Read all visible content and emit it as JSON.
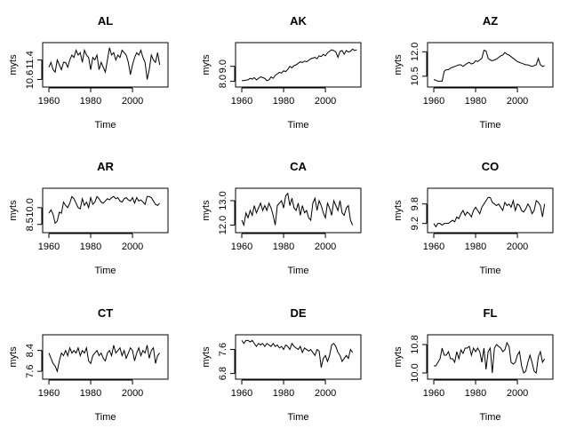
{
  "chart_data": [
    {
      "type": "line",
      "title": "AL",
      "xlabel": "Time",
      "ylabel": "myts",
      "xlim": [
        1960,
        2014
      ],
      "ylim": [
        10.4,
        12.0
      ],
      "xticks": [
        1960,
        1980,
        2000
      ],
      "yticks": [
        10.6,
        11.4
      ],
      "ytick_labels": [
        "10.6",
        "11.4"
      ],
      "x_start": 1960,
      "values": [
        11.1,
        11.3,
        11.0,
        10.9,
        11.4,
        11.2,
        11.0,
        11.3,
        11.3,
        11.1,
        11.4,
        11.6,
        11.5,
        11.8,
        11.6,
        11.7,
        11.3,
        11.8,
        11.6,
        11.5,
        11.0,
        11.5,
        11.4,
        11.6,
        11.0,
        11.3,
        11.1,
        10.9,
        11.4,
        11.9,
        11.6,
        11.7,
        11.4,
        11.6,
        11.5,
        11.8,
        11.7,
        11.6,
        11.3,
        10.8,
        11.2,
        11.5,
        11.7,
        11.6,
        11.8,
        11.5,
        11.3,
        10.6,
        11.0,
        11.6,
        11.4,
        11.3,
        11.7,
        11.2
      ]
    },
    {
      "type": "line",
      "title": "AK",
      "xlabel": "Time",
      "ylabel": "myts",
      "xlim": [
        1960,
        2014
      ],
      "ylim": [
        7.8,
        10.4
      ],
      "xticks": [
        1960,
        1980,
        2000
      ],
      "yticks": [
        8.0,
        9.0
      ],
      "ytick_labels": [
        "8.0",
        "9.0"
      ],
      "x_start": 1960,
      "values": [
        8.05,
        8.05,
        8.08,
        8.1,
        8.2,
        8.15,
        8.25,
        8.1,
        8.2,
        8.3,
        8.25,
        8.2,
        8.05,
        8.1,
        8.3,
        8.2,
        8.4,
        8.5,
        8.6,
        8.55,
        8.7,
        8.65,
        8.8,
        9.0,
        8.9,
        9.05,
        9.1,
        9.2,
        9.3,
        9.25,
        9.35,
        9.3,
        9.4,
        9.5,
        9.55,
        9.6,
        9.5,
        9.7,
        9.65,
        9.8,
        9.7,
        9.9,
        10.0,
        10.1,
        10.05,
        9.95,
        9.6,
        10.0,
        10.05,
        9.8,
        10.05,
        9.95,
        10.0,
        10.15,
        10.05,
        10.1
      ]
    },
    {
      "type": "line",
      "title": "AZ",
      "xlabel": "Time",
      "ylabel": "myts",
      "xlim": [
        1960,
        2014
      ],
      "ylim": [
        10.0,
        12.4
      ],
      "xticks": [
        1960,
        1980,
        2000
      ],
      "yticks": [
        10.5,
        12.0
      ],
      "ytick_labels": [
        "10.5",
        "12.0"
      ],
      "x_start": 1960,
      "values": [
        10.3,
        10.25,
        10.2,
        10.2,
        10.2,
        10.8,
        10.9,
        10.9,
        11.0,
        11.05,
        11.1,
        11.15,
        11.2,
        11.2,
        11.1,
        11.2,
        11.3,
        11.35,
        11.25,
        11.3,
        11.45,
        11.4,
        11.5,
        11.6,
        12.1,
        12.05,
        11.6,
        11.5,
        11.45,
        11.5,
        11.55,
        11.65,
        11.75,
        11.8,
        11.95,
        11.85,
        11.8,
        11.7,
        11.6,
        11.5,
        11.4,
        11.35,
        11.3,
        11.25,
        11.2,
        11.2,
        11.15,
        11.1,
        11.15,
        11.2,
        11.6,
        11.2,
        11.1,
        11.15
      ]
    },
    {
      "type": "line",
      "title": "AR",
      "xlabel": "Time",
      "ylabel": "myts",
      "xlim": [
        1960,
        2014
      ],
      "ylim": [
        8.0,
        11.5
      ],
      "xticks": [
        1960,
        1980,
        2000
      ],
      "yticks": [
        8.5,
        10.0
      ],
      "ytick_labels": [
        "8.5",
        "10.0"
      ],
      "x_start": 1960,
      "values": [
        9.5,
        9.8,
        9.4,
        8.6,
        8.8,
        9.6,
        9.5,
        10.5,
        10.2,
        10.0,
        10.4,
        11.0,
        10.8,
        10.4,
        10.0,
        9.9,
        10.8,
        10.2,
        10.5,
        10.0,
        10.9,
        10.3,
        10.5,
        11.0,
        10.8,
        10.5,
        10.4,
        10.6,
        10.8,
        10.7,
        10.9,
        11.0,
        10.8,
        10.9,
        10.6,
        10.5,
        10.8,
        10.9,
        10.7,
        10.6,
        10.9,
        10.4,
        10.9,
        10.6,
        10.7,
        10.5,
        10.3,
        11.0,
        11.0,
        10.9,
        10.6,
        10.3,
        10.2,
        10.4
      ]
    },
    {
      "type": "line",
      "title": "CA",
      "xlabel": "Time",
      "ylabel": "myts",
      "xlim": [
        1960,
        2014
      ],
      "ylim": [
        11.8,
        13.4
      ],
      "xticks": [
        1960,
        1980,
        2000
      ],
      "yticks": [
        12.0,
        13.0
      ],
      "ytick_labels": [
        "12.0",
        "13.0"
      ],
      "x_start": 1960,
      "values": [
        12.2,
        12.0,
        12.5,
        12.3,
        12.6,
        12.4,
        12.8,
        12.5,
        12.7,
        12.9,
        12.6,
        12.8,
        12.6,
        12.9,
        12.7,
        12.4,
        12.0,
        12.8,
        12.9,
        13.0,
        12.7,
        13.2,
        13.3,
        12.8,
        13.1,
        12.7,
        12.6,
        12.9,
        12.4,
        12.8,
        12.5,
        12.6,
        12.3,
        12.2,
        12.9,
        13.1,
        12.6,
        13.0,
        12.8,
        12.5,
        12.3,
        12.9,
        12.7,
        12.4,
        13.0,
        12.8,
        12.6,
        13.0,
        12.5,
        12.4,
        12.7,
        12.8,
        12.2,
        12.0
      ]
    },
    {
      "type": "line",
      "title": "CO",
      "xlabel": "Time",
      "ylabel": "myts",
      "xlim": [
        1960,
        2014
      ],
      "ylim": [
        9.0,
        10.2
      ],
      "xticks": [
        1960,
        1980,
        2000
      ],
      "yticks": [
        9.2,
        9.8
      ],
      "ytick_labels": [
        "9.2",
        "9.8"
      ],
      "x_start": 1960,
      "values": [
        9.2,
        9.1,
        9.2,
        9.2,
        9.15,
        9.2,
        9.2,
        9.2,
        9.25,
        9.3,
        9.25,
        9.4,
        9.35,
        9.5,
        9.6,
        9.45,
        9.55,
        9.5,
        9.4,
        9.6,
        9.7,
        9.6,
        9.5,
        9.7,
        9.8,
        9.9,
        10.0,
        10.0,
        9.85,
        9.8,
        9.75,
        9.8,
        9.7,
        9.6,
        9.85,
        9.75,
        9.8,
        9.7,
        9.9,
        9.6,
        9.8,
        9.75,
        9.6,
        9.55,
        9.65,
        9.8,
        9.7,
        9.5,
        9.6,
        9.9,
        9.85,
        9.75,
        9.4,
        9.8
      ]
    },
    {
      "type": "line",
      "title": "CT",
      "xlabel": "Time",
      "ylabel": "myts",
      "xlim": [
        1960,
        2014
      ],
      "ylim": [
        7.4,
        8.9
      ],
      "xticks": [
        1960,
        1980,
        2000
      ],
      "yticks": [
        7.6,
        8.4
      ],
      "ytick_labels": [
        "7.6",
        "8.4"
      ],
      "x_start": 1960,
      "values": [
        8.3,
        8.1,
        7.9,
        7.8,
        7.6,
        8.0,
        8.3,
        8.2,
        8.4,
        8.2,
        8.5,
        8.3,
        8.4,
        8.3,
        8.5,
        8.2,
        8.4,
        8.3,
        8.5,
        8.0,
        7.9,
        8.2,
        8.3,
        8.4,
        8.2,
        8.3,
        8.1,
        8.0,
        8.3,
        8.4,
        8.2,
        8.6,
        8.3,
        8.4,
        8.5,
        8.2,
        8.4,
        8.1,
        8.3,
        8.5,
        8.4,
        8.0,
        8.3,
        8.5,
        8.2,
        8.4,
        8.3,
        8.6,
        8.1,
        8.4,
        8.5,
        7.9,
        8.2,
        8.3
      ]
    },
    {
      "type": "line",
      "title": "DE",
      "xlabel": "Time",
      "ylabel": "myts",
      "xlim": [
        1960,
        2014
      ],
      "ylim": [
        6.7,
        8.0
      ],
      "xticks": [
        1960,
        1980,
        2000
      ],
      "yticks": [
        6.8,
        7.6
      ],
      "ytick_labels": [
        "6.8",
        "7.6"
      ],
      "x_start": 1960,
      "values": [
        7.9,
        7.8,
        7.9,
        7.9,
        7.85,
        7.9,
        7.8,
        7.7,
        7.8,
        7.75,
        7.8,
        7.7,
        7.8,
        7.75,
        7.7,
        7.8,
        7.7,
        7.75,
        7.65,
        7.7,
        7.6,
        7.75,
        7.7,
        7.6,
        7.8,
        7.7,
        7.65,
        7.6,
        7.7,
        7.5,
        7.65,
        7.6,
        7.55,
        7.6,
        7.5,
        7.4,
        7.6,
        7.55,
        7.0,
        7.3,
        7.4,
        7.2,
        7.4,
        7.75,
        7.8,
        7.7,
        7.5,
        7.4,
        7.2,
        7.3,
        7.4,
        7.3,
        7.6,
        7.5
      ]
    },
    {
      "type": "line",
      "title": "FL",
      "xlabel": "Time",
      "ylabel": "myts",
      "xlim": [
        1960,
        2014
      ],
      "ylim": [
        9.9,
        11.0
      ],
      "xticks": [
        1960,
        1980,
        2000
      ],
      "yticks": [
        10.0,
        10.8
      ],
      "ytick_labels": [
        "10.0",
        "10.8"
      ],
      "x_start": 1960,
      "values": [
        10.2,
        10.2,
        10.3,
        10.4,
        10.7,
        10.5,
        10.5,
        10.6,
        10.4,
        10.4,
        10.3,
        10.6,
        10.4,
        10.65,
        10.55,
        10.7,
        10.7,
        10.75,
        10.5,
        10.7,
        10.6,
        10.7,
        10.6,
        10.3,
        10.7,
        10.1,
        10.6,
        10.7,
        10.0,
        10.7,
        10.8,
        10.75,
        10.7,
        10.6,
        10.65,
        10.85,
        10.75,
        10.3,
        10.25,
        10.3,
        10.5,
        10.6,
        10.2,
        10.0,
        10.05,
        10.3,
        10.5,
        10.3,
        10.05,
        10.0,
        10.45,
        10.6,
        10.3,
        10.4
      ]
    }
  ]
}
